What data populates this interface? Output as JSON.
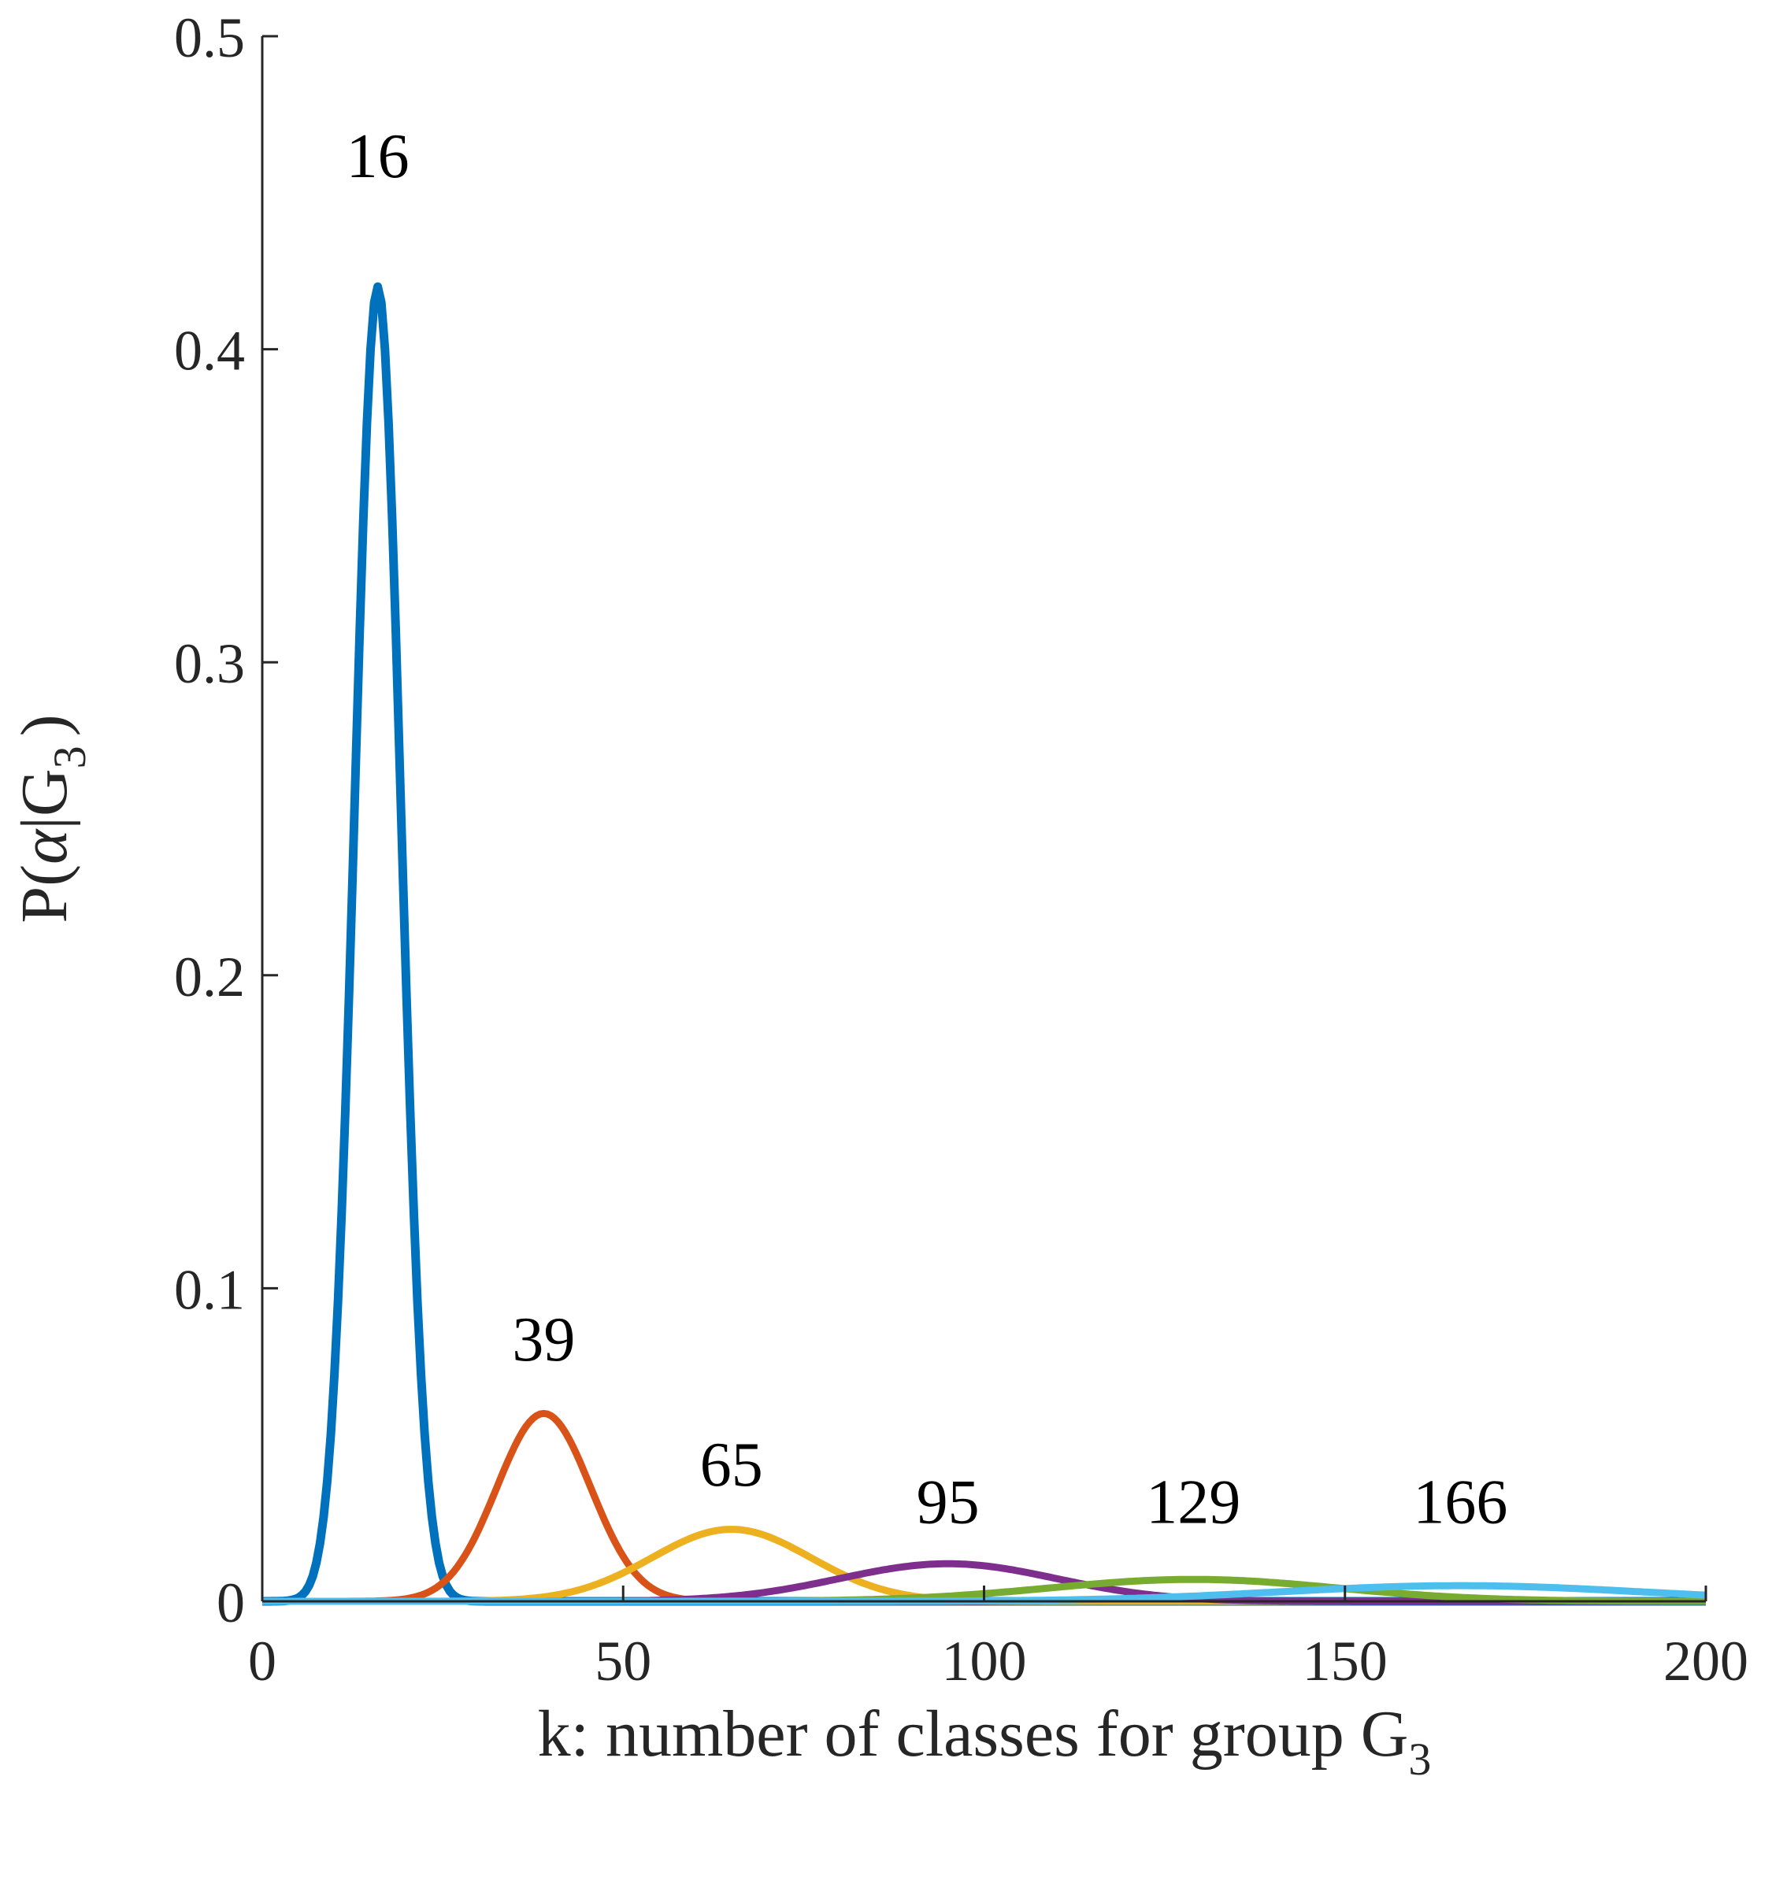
{
  "chart_data": {
    "type": "line",
    "xlabel": "k: number of classes for group G",
    "xlabel_subscript": "3",
    "ylabel_prefix": "P(",
    "ylabel_alpha": "α",
    "ylabel_mid": "|G",
    "ylabel_subscript": "3",
    "ylabel_suffix": ")",
    "xlim": [
      0,
      200
    ],
    "ylim": [
      0,
      0.5
    ],
    "x_ticks": [
      0,
      50,
      100,
      150,
      200
    ],
    "x_tick_labels": [
      "0",
      "50",
      "100",
      "150",
      "200"
    ],
    "y_ticks": [
      0,
      0.1,
      0.2,
      0.3,
      0.4,
      0.5
    ],
    "y_tick_labels": [
      "0",
      "0.1",
      "0.2",
      "0.3",
      "0.4",
      "0.5"
    ],
    "grid": false,
    "series": [
      {
        "peak_x": 16,
        "peak_y": 0.42,
        "sigma": 3.2,
        "color": "#0072BD",
        "label": "16"
      },
      {
        "peak_x": 39,
        "peak_y": 0.06,
        "sigma": 6.5,
        "color": "#D95319",
        "label": "39"
      },
      {
        "peak_x": 65,
        "peak_y": 0.023,
        "sigma": 11,
        "color": "#EDB120",
        "label": "65"
      },
      {
        "peak_x": 95,
        "peak_y": 0.012,
        "sigma": 15,
        "color": "#7E2F8E",
        "label": "95"
      },
      {
        "peak_x": 129,
        "peak_y": 0.007,
        "sigma": 20,
        "color": "#77AC30",
        "label": "129"
      },
      {
        "peak_x": 166,
        "peak_y": 0.005,
        "sigma": 25,
        "color": "#4DBEEE",
        "label": "166"
      }
    ],
    "peak_label_y": [
      0.455,
      0.077,
      0.037,
      0.025,
      0.025,
      0.025
    ]
  }
}
